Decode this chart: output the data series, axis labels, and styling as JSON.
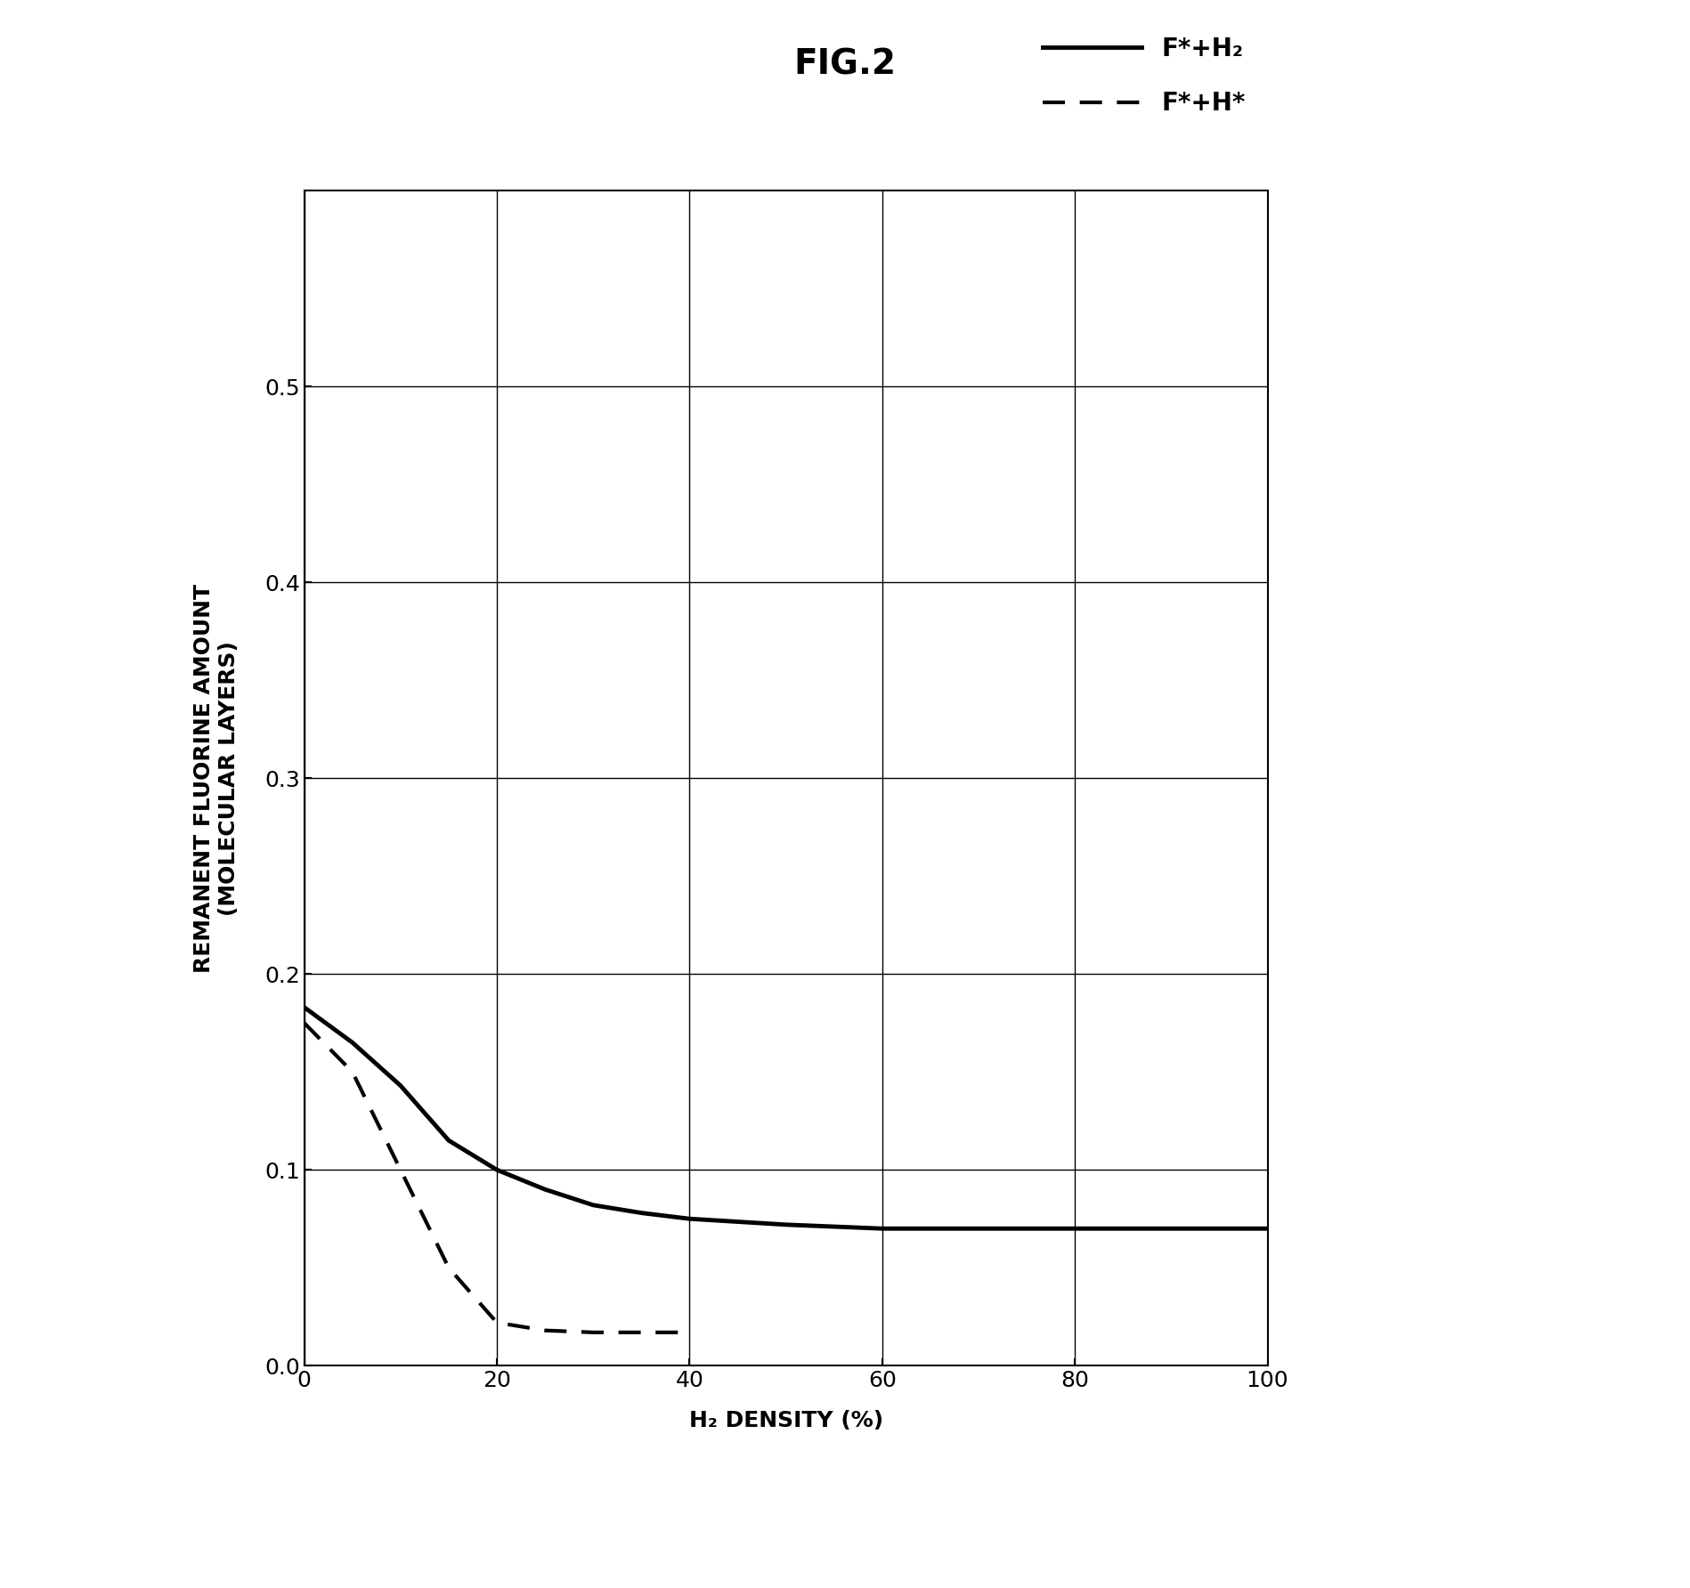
{
  "title": "FIG.2",
  "xlabel": "H₂ DENSITY (%)",
  "ylabel": "REMANENT FLUORINE AMOUNT\n(MOLECULAR LAYERS)",
  "xlim": [
    0,
    100
  ],
  "ylim": [
    0,
    0.6
  ],
  "xticks": [
    0,
    20,
    40,
    60,
    80,
    100
  ],
  "yticks": [
    0,
    0.1,
    0.2,
    0.3,
    0.4,
    0.5
  ],
  "solid_x": [
    0,
    5,
    10,
    15,
    20,
    25,
    30,
    35,
    40,
    50,
    60,
    70,
    78,
    100
  ],
  "solid_y": [
    0.183,
    0.165,
    0.143,
    0.115,
    0.1,
    0.09,
    0.082,
    0.078,
    0.075,
    0.072,
    0.07,
    0.07,
    0.07,
    0.07
  ],
  "dashed_x": [
    0,
    5,
    10,
    15,
    20,
    25,
    30,
    35,
    40
  ],
  "dashed_y": [
    0.175,
    0.15,
    0.1,
    0.05,
    0.022,
    0.018,
    0.017,
    0.017,
    0.017
  ],
  "legend_solid": "F*+H₂",
  "legend_dashed": "F*+H*",
  "background": "#ffffff",
  "line_color": "#000000",
  "title_fontsize": 28,
  "label_fontsize": 18,
  "tick_fontsize": 18,
  "legend_fontsize": 20
}
